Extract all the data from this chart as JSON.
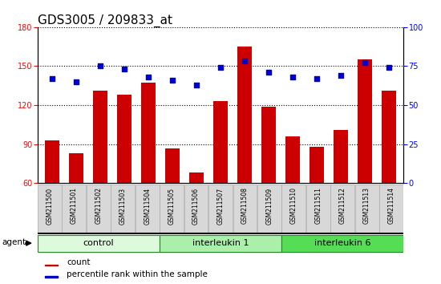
{
  "title": "GDS3005 / 209833_at",
  "samples": [
    "GSM211500",
    "GSM211501",
    "GSM211502",
    "GSM211503",
    "GSM211504",
    "GSM211505",
    "GSM211506",
    "GSM211507",
    "GSM211508",
    "GSM211509",
    "GSM211510",
    "GSM211511",
    "GSM211512",
    "GSM211513",
    "GSM211514"
  ],
  "counts": [
    93,
    83,
    131,
    128,
    137,
    87,
    68,
    123,
    165,
    119,
    96,
    88,
    101,
    155,
    131
  ],
  "percentiles": [
    67,
    65,
    75,
    73,
    68,
    66,
    63,
    74,
    78,
    71,
    68,
    67,
    69,
    77,
    74
  ],
  "groups": [
    {
      "label": "control",
      "start": 0,
      "end": 5,
      "color": "#ddfadd"
    },
    {
      "label": "interleukin 1",
      "start": 5,
      "end": 10,
      "color": "#aaf0aa"
    },
    {
      "label": "interleukin 6",
      "start": 10,
      "end": 15,
      "color": "#55dd55"
    }
  ],
  "ylim_left": [
    60,
    180
  ],
  "ylim_right": [
    0,
    100
  ],
  "yticks_left": [
    60,
    90,
    120,
    150,
    180
  ],
  "yticks_right": [
    0,
    25,
    50,
    75,
    100
  ],
  "bar_color": "#cc0000",
  "dot_color": "#0000cc",
  "sample_bg_color": "#d8d8d8",
  "plot_bg": "#ffffff",
  "title_fontsize": 11,
  "tick_fontsize": 7,
  "label_fontsize": 5.5,
  "legend_fontsize": 7.5,
  "group_fontsize": 8
}
